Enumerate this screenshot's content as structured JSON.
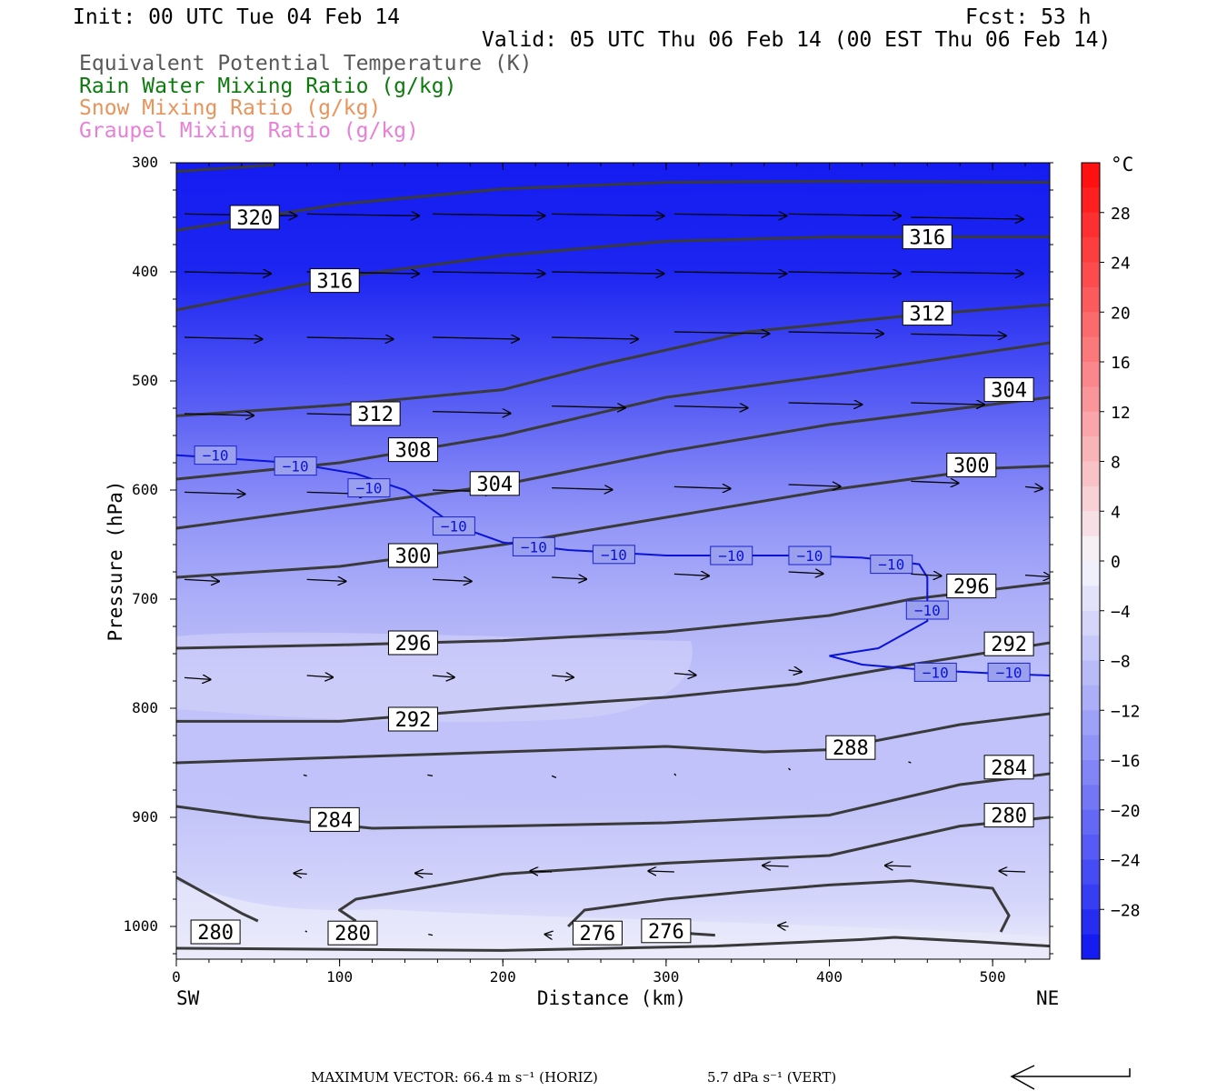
{
  "header": {
    "init": "Init: 00 UTC Tue 04 Feb 14",
    "fcst": "Fcst:   53 h",
    "valid": "Valid: 05 UTC Thu 06 Feb 14 (00 EST Thu 06 Feb 14)"
  },
  "legend": {
    "theta_e": "Equivalent Potential Temperature (K)",
    "rain": "Rain Water Mixing Ratio (g/kg)",
    "snow": "Snow Mixing Ratio (g/kg)",
    "graupel": "Graupel Mixing Ratio (g/kg)"
  },
  "footer": {
    "max_vector": "MAXIMUM VECTOR:  66.4 m s⁻¹ (HORIZ)",
    "vert": "5.7 dPa s⁻¹ (VERT)"
  },
  "colors": {
    "theta_e_line": "#3a3a3a",
    "isotherm": "#0a14d8",
    "fill_cold": "#0a12f0",
    "fill_light": "#e8e8f8"
  },
  "chart_data": {
    "type": "cross-section",
    "title": "Equivalent Potential Temperature (K)",
    "xlabel": "Distance (km)",
    "ylabel": "Pressure (hPa)",
    "x_left_label": "SW",
    "x_right_label": "NE",
    "xlim": [
      0,
      535
    ],
    "ylim": [
      1030,
      300
    ],
    "xticks": [
      0,
      100,
      200,
      300,
      400,
      500
    ],
    "yticks": [
      300,
      400,
      500,
      600,
      700,
      800,
      900,
      1000
    ],
    "colorbar": {
      "unit": "°C",
      "ticks": [
        28,
        24,
        20,
        16,
        12,
        8,
        4,
        0,
        -4,
        -8,
        -12,
        -16,
        -20,
        -24,
        -28
      ],
      "range": [
        -32,
        32
      ]
    },
    "temperature_fill": [
      {
        "p": 300,
        "t": -31
      },
      {
        "p": 400,
        "t": -30
      },
      {
        "p": 470,
        "t": -26
      },
      {
        "p": 530,
        "t": -22
      },
      {
        "p": 580,
        "t": -18
      },
      {
        "p": 640,
        "t": -14
      },
      {
        "p": 700,
        "t": -11
      },
      {
        "p": 780,
        "t": -8
      },
      {
        "p": 880,
        "t": -8
      },
      {
        "p": 980,
        "t": -5
      },
      {
        "p": 1020,
        "t": -2
      }
    ],
    "theta_e_contours": [
      {
        "label": "320",
        "points": [
          [
            0,
            308
          ],
          [
            60,
            302
          ]
        ]
      },
      {
        "label": "320",
        "points": [
          [
            0,
            362
          ],
          [
            100,
            338
          ],
          [
            200,
            324
          ],
          [
            300,
            318
          ],
          [
            400,
            317
          ],
          [
            535,
            318
          ]
        ]
      },
      {
        "label": "316",
        "points": [
          [
            0,
            435
          ],
          [
            100,
            405
          ],
          [
            200,
            385
          ],
          [
            300,
            372
          ],
          [
            400,
            368
          ],
          [
            535,
            368
          ]
        ]
      },
      {
        "label": "312",
        "points": [
          [
            0,
            532
          ],
          [
            100,
            522
          ],
          [
            200,
            508
          ],
          [
            260,
            485
          ],
          [
            350,
            455
          ],
          [
            450,
            440
          ],
          [
            535,
            430
          ]
        ]
      },
      {
        "label": "308",
        "points": [
          [
            0,
            590
          ],
          [
            100,
            575
          ],
          [
            200,
            550
          ],
          [
            300,
            515
          ],
          [
            400,
            495
          ],
          [
            535,
            465
          ]
        ]
      },
      {
        "label": "304",
        "points": [
          [
            0,
            635
          ],
          [
            100,
            615
          ],
          [
            200,
            595
          ],
          [
            300,
            565
          ],
          [
            400,
            540
          ],
          [
            535,
            515
          ]
        ]
      },
      {
        "label": "300",
        "points": [
          [
            0,
            680
          ],
          [
            100,
            670
          ],
          [
            200,
            650
          ],
          [
            300,
            625
          ],
          [
            400,
            600
          ],
          [
            500,
            580
          ],
          [
            535,
            578
          ]
        ]
      },
      {
        "label": "296",
        "points": [
          [
            0,
            745
          ],
          [
            100,
            742
          ],
          [
            200,
            738
          ],
          [
            300,
            730
          ],
          [
            400,
            715
          ],
          [
            450,
            700
          ],
          [
            535,
            685
          ]
        ]
      },
      {
        "label": "292",
        "points": [
          [
            0,
            812
          ],
          [
            100,
            812
          ],
          [
            200,
            800
          ],
          [
            300,
            790
          ],
          [
            380,
            778
          ],
          [
            450,
            760
          ],
          [
            535,
            740
          ]
        ]
      },
      {
        "label": "288",
        "points": [
          [
            0,
            850
          ],
          [
            100,
            845
          ],
          [
            200,
            840
          ],
          [
            300,
            835
          ],
          [
            360,
            840
          ],
          [
            400,
            838
          ],
          [
            480,
            815
          ],
          [
            535,
            805
          ]
        ]
      },
      {
        "label": "284",
        "points": [
          [
            0,
            890
          ],
          [
            50,
            900
          ],
          [
            120,
            910
          ],
          [
            200,
            908
          ],
          [
            300,
            905
          ],
          [
            400,
            898
          ],
          [
            480,
            870
          ],
          [
            535,
            860
          ]
        ]
      },
      {
        "label": "280",
        "points": [
          [
            0,
            955
          ],
          [
            40,
            988
          ],
          [
            50,
            995
          ]
        ]
      },
      {
        "label": "280",
        "points": [
          [
            110,
            995
          ],
          [
            100,
            985
          ],
          [
            110,
            975
          ],
          [
            150,
            965
          ],
          [
            200,
            952
          ],
          [
            300,
            942
          ],
          [
            400,
            935
          ],
          [
            480,
            908
          ],
          [
            535,
            900
          ]
        ]
      },
      {
        "label": "276",
        "points": [
          [
            240,
            1000
          ],
          [
            250,
            985
          ],
          [
            300,
            975
          ],
          [
            350,
            968
          ],
          [
            400,
            962
          ],
          [
            450,
            958
          ],
          [
            500,
            965
          ],
          [
            510,
            990
          ],
          [
            505,
            1005
          ]
        ]
      },
      {
        "label": "276",
        "points": [
          [
            300,
            1005
          ],
          [
            330,
            1008
          ]
        ]
      },
      {
        "label": "280",
        "points": [
          [
            0,
            1020
          ],
          [
            200,
            1022
          ],
          [
            330,
            1018
          ],
          [
            420,
            1012
          ],
          [
            440,
            1010
          ],
          [
            490,
            1014
          ],
          [
            535,
            1018
          ]
        ]
      }
    ],
    "isotherm_minus10": [
      [
        0,
        568
      ],
      [
        40,
        572
      ],
      [
        70,
        575
      ],
      [
        110,
        585
      ],
      [
        140,
        600
      ],
      [
        170,
        632
      ],
      [
        200,
        648
      ],
      [
        240,
        655
      ],
      [
        300,
        660
      ],
      [
        380,
        660
      ],
      [
        420,
        662
      ],
      [
        455,
        668
      ],
      [
        460,
        680
      ],
      [
        460,
        720
      ],
      [
        430,
        745
      ],
      [
        400,
        752
      ],
      [
        420,
        760
      ],
      [
        460,
        765
      ],
      [
        500,
        768
      ],
      [
        535,
        770
      ]
    ],
    "contour_label_positions": [
      {
        "label": "320",
        "x": 48,
        "p": 350
      },
      {
        "label": "316",
        "x": 97,
        "p": 408
      },
      {
        "label": "316",
        "x": 460,
        "p": 368
      },
      {
        "label": "312",
        "x": 122,
        "p": 530
      },
      {
        "label": "312",
        "x": 460,
        "p": 438
      },
      {
        "label": "304",
        "x": 510,
        "p": 508
      },
      {
        "label": "308",
        "x": 145,
        "p": 563
      },
      {
        "label": "304",
        "x": 195,
        "p": 594
      },
      {
        "label": "300",
        "x": 487,
        "p": 577
      },
      {
        "label": "300",
        "x": 145,
        "p": 660
      },
      {
        "label": "296",
        "x": 487,
        "p": 688
      },
      {
        "label": "296",
        "x": 145,
        "p": 740
      },
      {
        "label": "292",
        "x": 510,
        "p": 741
      },
      {
        "label": "292",
        "x": 145,
        "p": 810
      },
      {
        "label": "288",
        "x": 413,
        "p": 836
      },
      {
        "label": "284",
        "x": 510,
        "p": 854
      },
      {
        "label": "284",
        "x": 97,
        "p": 902
      },
      {
        "label": "280",
        "x": 510,
        "p": 898
      },
      {
        "label": "280",
        "x": 24,
        "p": 1005
      },
      {
        "label": "280",
        "x": 108,
        "p": 1006
      },
      {
        "label": "276",
        "x": 258,
        "p": 1006
      },
      {
        "label": "276",
        "x": 300,
        "p": 1004
      }
    ],
    "isotherm_label_positions": [
      {
        "label": "−10",
        "x": 24,
        "p": 568
      },
      {
        "label": "−10",
        "x": 73,
        "p": 578
      },
      {
        "label": "−10",
        "x": 118,
        "p": 598
      },
      {
        "label": "−10",
        "x": 170,
        "p": 633
      },
      {
        "label": "−10",
        "x": 219,
        "p": 652
      },
      {
        "label": "−10",
        "x": 268,
        "p": 659
      },
      {
        "label": "−10",
        "x": 340,
        "p": 660
      },
      {
        "label": "−10",
        "x": 388,
        "p": 660
      },
      {
        "label": "−10",
        "x": 438,
        "p": 668
      },
      {
        "label": "−10",
        "x": 460,
        "p": 710
      },
      {
        "label": "−10",
        "x": 465,
        "p": 767
      },
      {
        "label": "−10",
        "x": 510,
        "p": 767
      }
    ],
    "wind_vectors": [
      {
        "x": 5,
        "p": 347,
        "u": 130
      },
      {
        "x": 80,
        "p": 347,
        "u": 130
      },
      {
        "x": 157,
        "p": 347,
        "u": 130
      },
      {
        "x": 230,
        "p": 347,
        "u": 130
      },
      {
        "x": 305,
        "p": 347,
        "u": 130
      },
      {
        "x": 375,
        "p": 347,
        "u": 130
      },
      {
        "x": 450,
        "p": 350,
        "u": 130
      },
      {
        "x": 5,
        "p": 400,
        "u": 100
      },
      {
        "x": 80,
        "p": 400,
        "u": 130
      },
      {
        "x": 157,
        "p": 400,
        "u": 130
      },
      {
        "x": 230,
        "p": 400,
        "u": 130
      },
      {
        "x": 305,
        "p": 400,
        "u": 130
      },
      {
        "x": 375,
        "p": 400,
        "u": 130
      },
      {
        "x": 450,
        "p": 400,
        "u": 130
      },
      {
        "x": 5,
        "p": 460,
        "u": 90
      },
      {
        "x": 80,
        "p": 460,
        "u": 100
      },
      {
        "x": 157,
        "p": 460,
        "u": 100
      },
      {
        "x": 230,
        "p": 460,
        "u": 100
      },
      {
        "x": 305,
        "p": 455,
        "u": 110
      },
      {
        "x": 375,
        "p": 455,
        "u": 110
      },
      {
        "x": 450,
        "p": 457,
        "u": 110
      },
      {
        "x": 5,
        "p": 530,
        "u": 80
      },
      {
        "x": 80,
        "p": 530,
        "u": 90
      },
      {
        "x": 157,
        "p": 528,
        "u": 90
      },
      {
        "x": 230,
        "p": 523,
        "u": 85
      },
      {
        "x": 305,
        "p": 523,
        "u": 85
      },
      {
        "x": 375,
        "p": 520,
        "u": 85
      },
      {
        "x": 450,
        "p": 520,
        "u": 85
      },
      {
        "x": 5,
        "p": 602,
        "u": 70
      },
      {
        "x": 80,
        "p": 602,
        "u": 70
      },
      {
        "x": 157,
        "p": 600,
        "u": 70
      },
      {
        "x": 230,
        "p": 598,
        "u": 70
      },
      {
        "x": 305,
        "p": 597,
        "u": 65
      },
      {
        "x": 375,
        "p": 595,
        "u": 60
      },
      {
        "x": 450,
        "p": 592,
        "u": 55
      },
      {
        "x": 520,
        "p": 597,
        "u": 20
      },
      {
        "x": 5,
        "p": 682,
        "u": 40
      },
      {
        "x": 80,
        "p": 682,
        "u": 45
      },
      {
        "x": 157,
        "p": 682,
        "u": 45
      },
      {
        "x": 230,
        "p": 680,
        "u": 40
      },
      {
        "x": 305,
        "p": 677,
        "u": 40
      },
      {
        "x": 375,
        "p": 675,
        "u": 40
      },
      {
        "x": 450,
        "p": 677,
        "u": 35
      },
      {
        "x": 520,
        "p": 678,
        "u": 30
      },
      {
        "x": 5,
        "p": 772,
        "u": 30
      },
      {
        "x": 80,
        "p": 770,
        "u": 30
      },
      {
        "x": 157,
        "p": 770,
        "u": 25
      },
      {
        "x": 230,
        "p": 770,
        "u": 25
      },
      {
        "x": 305,
        "p": 768,
        "u": 25
      },
      {
        "x": 375,
        "p": 765,
        "u": 15
      },
      {
        "x": 80,
        "p": 862,
        "u": -4
      },
      {
        "x": 157,
        "p": 862,
        "u": -6
      },
      {
        "x": 230,
        "p": 862,
        "u": 5
      },
      {
        "x": 305,
        "p": 860,
        "u": 2
      },
      {
        "x": 375,
        "p": 855,
        "u": 2
      },
      {
        "x": 450,
        "p": 850,
        "u": -3
      },
      {
        "x": 80,
        "p": 952,
        "u": -15
      },
      {
        "x": 157,
        "p": 952,
        "u": -20
      },
      {
        "x": 230,
        "p": 950,
        "u": -25
      },
      {
        "x": 305,
        "p": 950,
        "u": -30
      },
      {
        "x": 375,
        "p": 945,
        "u": -30
      },
      {
        "x": 450,
        "p": 945,
        "u": -30
      },
      {
        "x": 520,
        "p": 950,
        "u": -30
      },
      {
        "x": 80,
        "p": 1005,
        "u": -2
      },
      {
        "x": 157,
        "p": 1008,
        "u": -5
      },
      {
        "x": 230,
        "p": 1008,
        "u": -8
      },
      {
        "x": 305,
        "p": 1005,
        "u": -8
      },
      {
        "x": 375,
        "p": 1000,
        "u": -12
      }
    ]
  }
}
